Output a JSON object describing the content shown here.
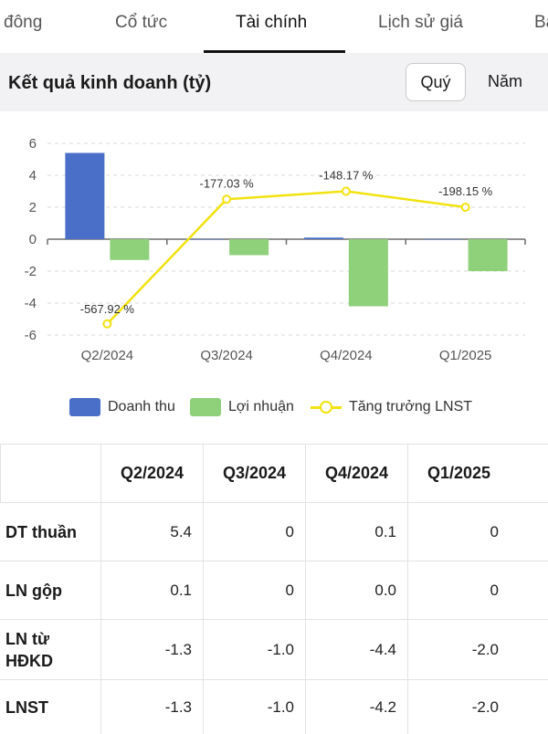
{
  "tabs": [
    {
      "label": "đông"
    },
    {
      "label": "Cổ tức"
    },
    {
      "label": "Tài chính"
    },
    {
      "label": "Lịch sử giá"
    },
    {
      "label": "Bả"
    }
  ],
  "section": {
    "title": "Kết quả kinh doanh (tỷ)",
    "period_quarter": "Quý",
    "period_year": "Năm"
  },
  "colors": {
    "revenue": "#4a6fc9",
    "profit": "#8fd07b",
    "growth": "#f2e20f"
  },
  "chart_data": {
    "type": "bar",
    "categories": [
      "Q2/2024",
      "Q3/2024",
      "Q4/2024",
      "Q1/2025"
    ],
    "series": [
      {
        "name": "Doanh thu",
        "type": "bar",
        "values": [
          5.4,
          0,
          0.1,
          0
        ]
      },
      {
        "name": "Lợi nhuận",
        "type": "bar",
        "values": [
          -1.3,
          -1.0,
          -4.2,
          -2.0
        ]
      },
      {
        "name": "Tăng trưởng LNST",
        "type": "line",
        "values": [
          -5.3,
          2.5,
          3.0,
          2.0
        ],
        "labels": [
          "-567.92 %",
          "-177.03 %",
          "-148.17 %",
          "-198.15 %"
        ]
      }
    ],
    "yticks": [
      6,
      4,
      2,
      0,
      -2,
      -4,
      -6
    ],
    "ylim": [
      -6,
      6
    ],
    "grid": true,
    "legend": "bottom"
  },
  "table": {
    "headers": [
      "",
      "Q2/2024",
      "Q3/2024",
      "Q4/2024",
      "Q1/2025"
    ],
    "rows": [
      {
        "label": "DT thuần",
        "values": [
          "5.4",
          "0",
          "0.1",
          "0"
        ]
      },
      {
        "label": "LN gộp",
        "values": [
          "0.1",
          "0",
          "0.0",
          "0"
        ]
      },
      {
        "label": "LN từ HĐKD",
        "values": [
          "-1.3",
          "-1.0",
          "-4.4",
          "-2.0"
        ]
      },
      {
        "label": "LNST",
        "values": [
          "-1.3",
          "-1.0",
          "-4.2",
          "-2.0"
        ]
      }
    ]
  }
}
